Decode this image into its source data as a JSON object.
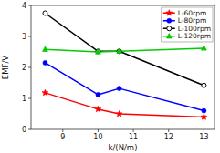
{
  "chart_data": {
    "type": "line",
    "x": [
      8.5,
      10.0,
      10.6,
      13.0
    ],
    "series": [
      {
        "name": "L-60rpm",
        "color": "red",
        "marker": "star",
        "values": [
          1.18,
          0.65,
          0.5,
          0.4
        ]
      },
      {
        "name": "L-80rpm",
        "color": "blue",
        "marker": "circle",
        "values": [
          2.15,
          1.12,
          1.32,
          0.6
        ]
      },
      {
        "name": "L-100rpm",
        "color": "black",
        "marker": "open-circle",
        "values": [
          3.75,
          2.52,
          2.52,
          1.42
        ]
      },
      {
        "name": "L-120rpm",
        "color": "#00cc00",
        "marker": "triangle",
        "values": [
          2.58,
          2.5,
          2.52,
          2.62
        ]
      }
    ],
    "xlabel": "k/(N/m)",
    "ylabel": "EMF/V",
    "xlim": [
      8.1,
      13.3
    ],
    "ylim": [
      0,
      4.0
    ],
    "xticks": [
      9,
      10,
      11,
      12,
      13
    ],
    "yticks": [
      0,
      1,
      2,
      3,
      4
    ],
    "grid": false,
    "legend": "upper right"
  }
}
